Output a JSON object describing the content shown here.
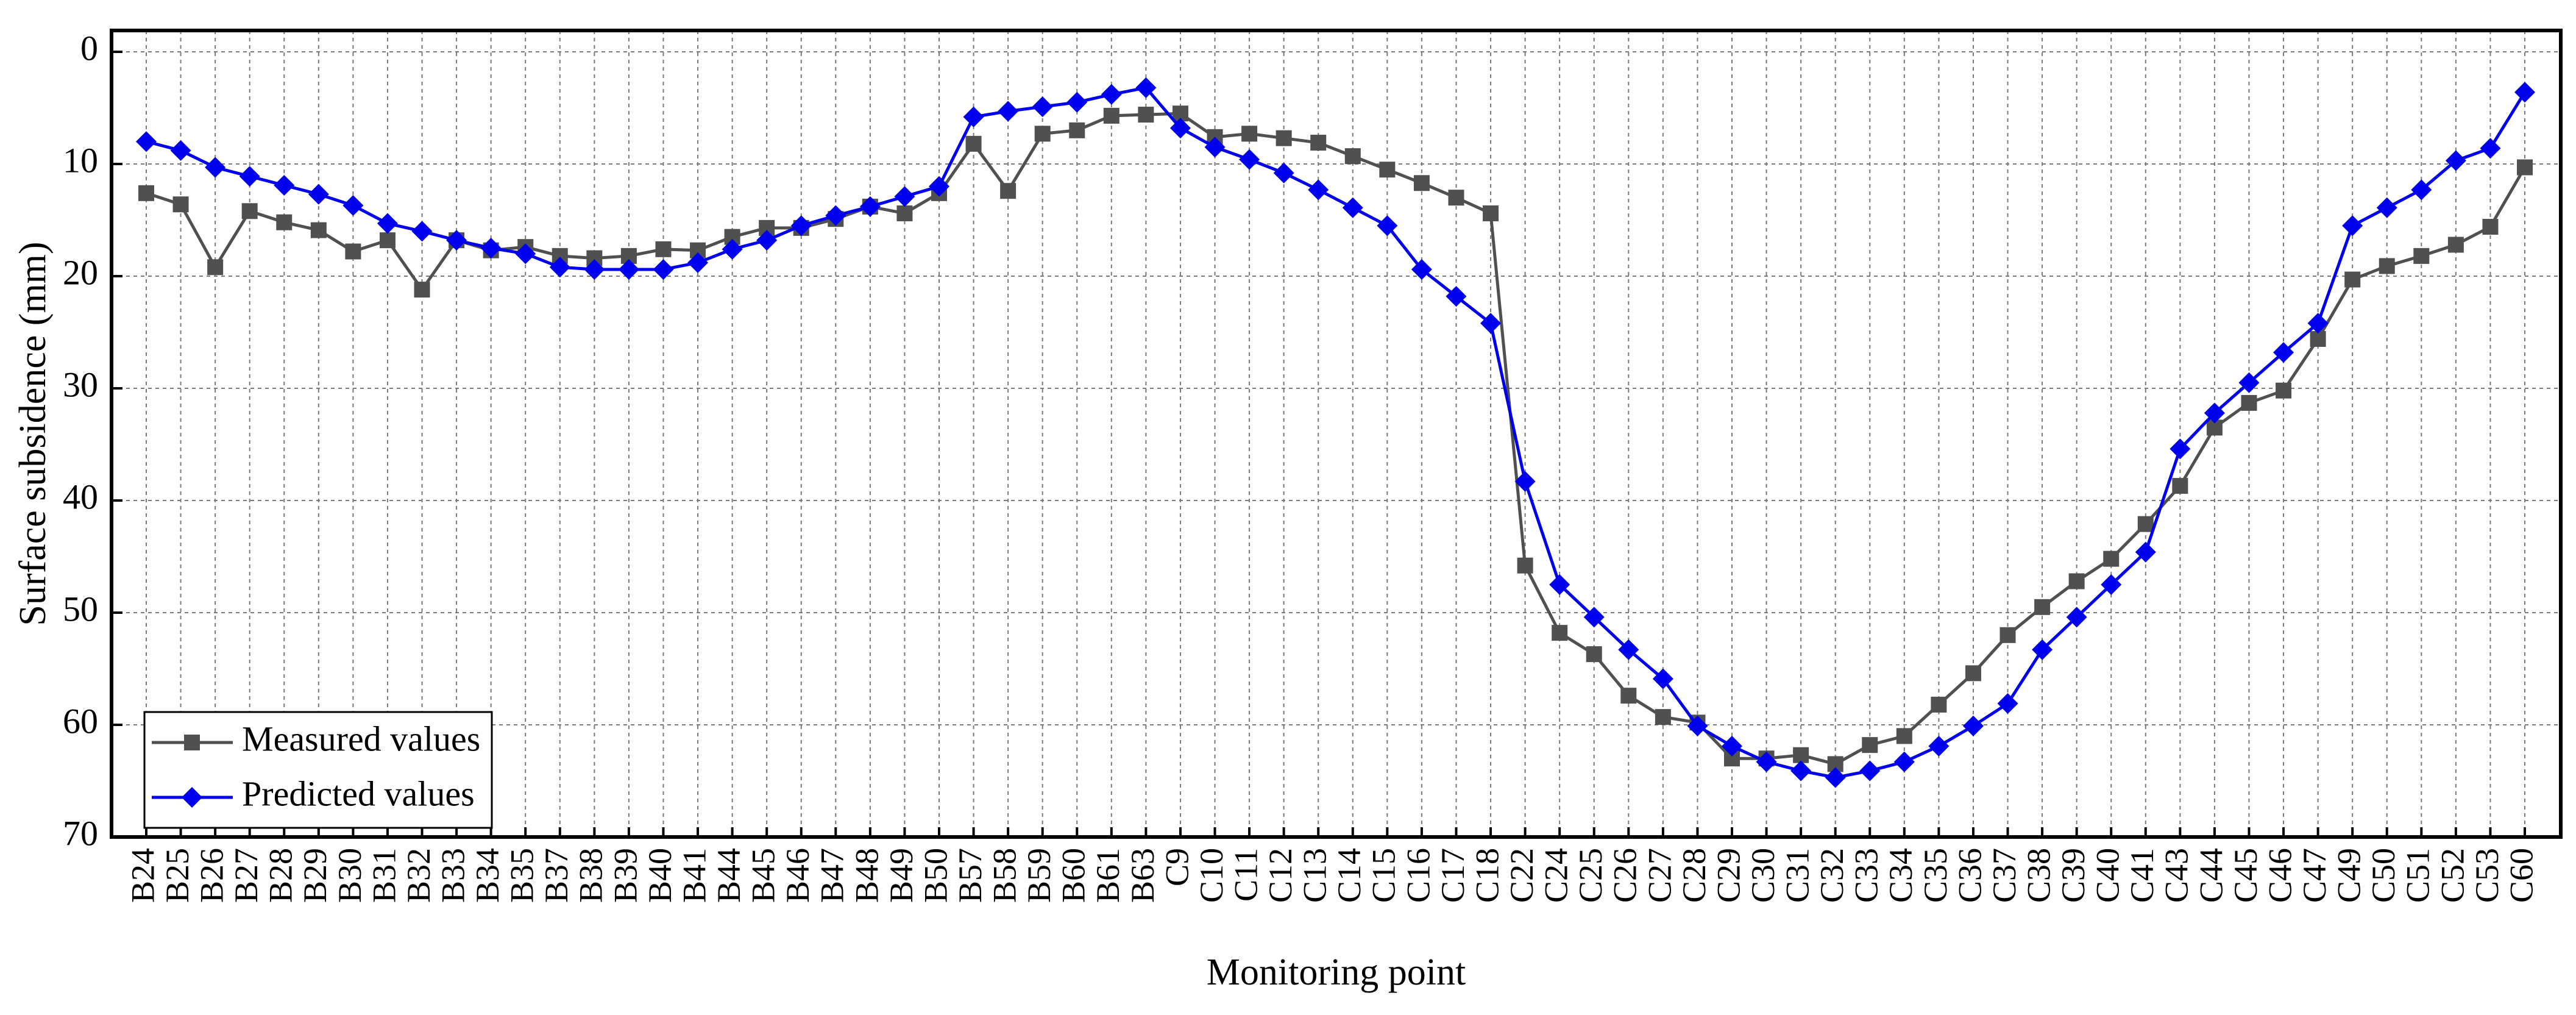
{
  "colors": {
    "measured": "#505050",
    "predicted": "#0000ee",
    "grid": "#7a7a7a",
    "axis": "#000000"
  },
  "chart_data": {
    "type": "line",
    "title": "",
    "xlabel": "Monitoring point",
    "ylabel": "Surface subsidence (mm)",
    "ylim": [
      0,
      70
    ],
    "y_inverted": true,
    "yticks": [
      "0",
      "10",
      "20",
      "30",
      "40",
      "50",
      "60",
      "70"
    ],
    "grid": true,
    "legend_position": "bottom-left",
    "categories": [
      "B24",
      "B25",
      "B26",
      "B27",
      "B28",
      "B29",
      "B30",
      "B31",
      "B32",
      "B33",
      "B34",
      "B35",
      "B37",
      "B38",
      "B39",
      "B40",
      "B41",
      "B44",
      "B45",
      "B46",
      "B47",
      "B48",
      "B49",
      "B50",
      "B57",
      "B58",
      "B59",
      "B60",
      "B61",
      "B63",
      "C9",
      "C10",
      "C11",
      "C12",
      "C13",
      "C14",
      "C15",
      "C16",
      "C17",
      "C18",
      "C22",
      "C24",
      "C25",
      "C26",
      "C27",
      "C28",
      "C29",
      "C30",
      "C31",
      "C32",
      "C33",
      "C34",
      "C35",
      "C36",
      "C37",
      "C38",
      "C39",
      "C40",
      "C41",
      "C43",
      "C44",
      "C45",
      "C46",
      "C47",
      "C49",
      "C50",
      "C51",
      "C52",
      "C53",
      "C60"
    ],
    "series": [
      {
        "name": "Measured values",
        "color": "#505050",
        "marker": "square",
        "values": [
          12.6,
          13.6,
          19.2,
          14.2,
          15.2,
          15.9,
          17.8,
          16.8,
          21.2,
          16.8,
          17.7,
          17.4,
          18.2,
          18.4,
          18.2,
          17.6,
          17.7,
          16.5,
          15.7,
          15.7,
          14.9,
          13.8,
          14.4,
          12.6,
          8.2,
          12.4,
          7.3,
          7.0,
          5.7,
          5.6,
          5.5,
          7.6,
          7.3,
          7.7,
          8.1,
          9.3,
          10.5,
          11.7,
          13.0,
          14.4,
          45.8,
          51.8,
          53.7,
          57.4,
          59.3,
          59.8,
          63.0,
          63.0,
          62.7,
          63.5,
          61.8,
          61.0,
          58.2,
          55.4,
          52.0,
          49.5,
          47.2,
          45.2,
          42.1,
          38.7,
          33.5,
          31.3,
          30.2,
          25.6,
          20.3,
          19.1,
          18.2,
          17.2,
          15.6,
          10.3
        ]
      },
      {
        "name": "Predicted values",
        "color": "#0000ee",
        "marker": "diamond",
        "values": [
          8.0,
          8.8,
          10.3,
          11.1,
          11.9,
          12.7,
          13.7,
          15.3,
          16.0,
          16.8,
          17.5,
          18.0,
          19.2,
          19.4,
          19.4,
          19.4,
          18.8,
          17.6,
          16.8,
          15.5,
          14.6,
          13.8,
          12.9,
          12.0,
          5.8,
          5.3,
          4.9,
          4.5,
          3.8,
          3.2,
          6.8,
          8.5,
          9.6,
          10.8,
          12.3,
          13.9,
          15.5,
          19.4,
          21.8,
          24.2,
          38.3,
          47.5,
          50.4,
          53.3,
          55.9,
          60.1,
          61.9,
          63.3,
          64.1,
          64.7,
          64.1,
          63.3,
          61.9,
          60.1,
          58.1,
          53.3,
          50.4,
          47.5,
          44.6,
          35.4,
          32.2,
          29.5,
          26.8,
          24.2,
          15.5,
          13.9,
          12.3,
          9.7,
          8.6,
          3.6
        ]
      }
    ]
  }
}
